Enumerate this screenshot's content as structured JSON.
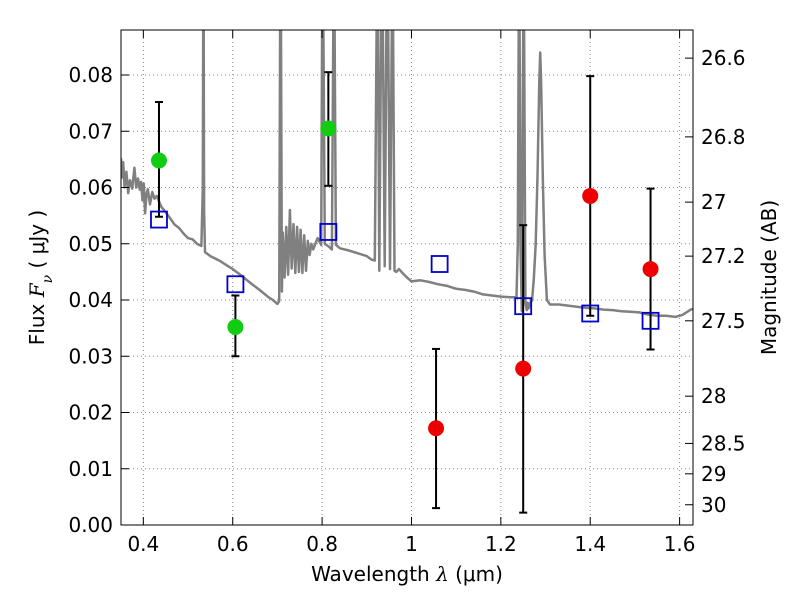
{
  "chart_data": {
    "type": "scatter",
    "title": "",
    "xlabel": {
      "prefix": "Wavelength  ",
      "symbol": "λ",
      "unit": " (μm)"
    },
    "ylabel": {
      "prefix": "Flux  ",
      "symbol": "F",
      "subscript": "ν",
      "unit": "  ( μJy )"
    },
    "y2label": "Magnitude (AB)",
    "xlim": [
      0.35,
      1.63
    ],
    "ylim": [
      0.0,
      0.088
    ],
    "grid": true,
    "x_ticks": [
      0.4,
      0.6,
      0.8,
      1.0,
      1.2,
      1.4,
      1.6
    ],
    "x_tick_labels": [
      "0.4",
      "0.6",
      "0.8",
      "1",
      "1.2",
      "1.4",
      "1.6"
    ],
    "y_ticks": [
      0.0,
      0.01,
      0.02,
      0.03,
      0.04,
      0.05,
      0.06,
      0.07,
      0.08
    ],
    "y_tick_labels": [
      "0.00",
      "0.01",
      "0.02",
      "0.03",
      "0.04",
      "0.05",
      "0.06",
      "0.07",
      "0.08"
    ],
    "y2_ticks": [
      {
        "label": "26.6",
        "flux": 0.083
      },
      {
        "label": "26.8",
        "flux": 0.069
      },
      {
        "label": "27",
        "flux": 0.0574
      },
      {
        "label": "27.2",
        "flux": 0.0478
      },
      {
        "label": "27.5",
        "flux": 0.0363
      },
      {
        "label": "28",
        "flux": 0.0229
      },
      {
        "label": "28.5",
        "flux": 0.0145
      },
      {
        "label": "29",
        "flux": 0.0091
      },
      {
        "label": "30",
        "flux": 0.0036
      }
    ],
    "colors": {
      "green_points": "#11cc11",
      "red_points": "#ee0000",
      "model_squares": "#0000cc",
      "spectrum": "#808080",
      "errorbar": "#000000",
      "grid": "#888888"
    },
    "series": [
      {
        "kind": "green-points",
        "points": [
          {
            "x": 0.435,
            "y": 0.0648,
            "ylo": 0.0548,
            "yhi": 0.0752
          },
          {
            "x": 0.606,
            "y": 0.0352,
            "ylo": 0.03,
            "yhi": 0.0408
          },
          {
            "x": 0.814,
            "y": 0.0705,
            "ylo": 0.0603,
            "yhi": 0.0805
          }
        ]
      },
      {
        "kind": "red-points",
        "points": [
          {
            "x": 1.055,
            "y": 0.0172,
            "ylo": 0.003,
            "yhi": 0.0313
          },
          {
            "x": 1.25,
            "y": 0.0278,
            "ylo": 0.0022,
            "yhi": 0.0533
          },
          {
            "x": 1.4,
            "y": 0.0585,
            "ylo": 0.0372,
            "yhi": 0.0798
          },
          {
            "x": 1.535,
            "y": 0.0455,
            "ylo": 0.0312,
            "yhi": 0.0598
          }
        ]
      },
      {
        "kind": "model-squares",
        "points": [
          {
            "x": 0.435,
            "y": 0.0543
          },
          {
            "x": 0.606,
            "y": 0.0428
          },
          {
            "x": 0.814,
            "y": 0.0521
          },
          {
            "x": 1.063,
            "y": 0.0464
          },
          {
            "x": 1.25,
            "y": 0.0389
          },
          {
            "x": 1.4,
            "y": 0.0376
          },
          {
            "x": 1.535,
            "y": 0.0363
          }
        ]
      }
    ],
    "spectrum": [
      [
        0.35,
        0.0652
      ],
      [
        0.352,
        0.0618
      ],
      [
        0.355,
        0.0645
      ],
      [
        0.358,
        0.06
      ],
      [
        0.362,
        0.0628
      ],
      [
        0.366,
        0.059
      ],
      [
        0.37,
        0.0613
      ],
      [
        0.375,
        0.0598
      ],
      [
        0.38,
        0.0635
      ],
      [
        0.384,
        0.06
      ],
      [
        0.388,
        0.0616
      ],
      [
        0.392,
        0.0596
      ],
      [
        0.395,
        0.061
      ],
      [
        0.398,
        0.0577
      ],
      [
        0.401,
        0.0607
      ],
      [
        0.404,
        0.0554
      ],
      [
        0.407,
        0.0588
      ],
      [
        0.41,
        0.0597
      ],
      [
        0.415,
        0.057
      ],
      [
        0.42,
        0.0592
      ],
      [
        0.425,
        0.058
      ],
      [
        0.43,
        0.0585
      ],
      [
        0.44,
        0.0566
      ],
      [
        0.45,
        0.0556
      ],
      [
        0.46,
        0.0545
      ],
      [
        0.47,
        0.0534
      ],
      [
        0.48,
        0.0528
      ],
      [
        0.49,
        0.0518
      ],
      [
        0.5,
        0.051
      ],
      [
        0.51,
        0.0508
      ],
      [
        0.52,
        0.05
      ],
      [
        0.53,
        0.0496
      ],
      [
        0.533,
        0.06
      ],
      [
        0.534,
        0.088
      ],
      [
        0.535,
        0.088
      ],
      [
        0.536,
        0.056
      ],
      [
        0.538,
        0.0485
      ],
      [
        0.55,
        0.0478
      ],
      [
        0.57,
        0.047
      ],
      [
        0.59,
        0.046
      ],
      [
        0.6,
        0.0455
      ],
      [
        0.62,
        0.0443
      ],
      [
        0.64,
        0.043
      ],
      [
        0.66,
        0.0418
      ],
      [
        0.68,
        0.0405
      ],
      [
        0.69,
        0.04
      ],
      [
        0.7,
        0.0393
      ],
      [
        0.704,
        0.0398
      ],
      [
        0.706,
        0.088
      ],
      [
        0.708,
        0.088
      ],
      [
        0.71,
        0.0415
      ],
      [
        0.712,
        0.052
      ],
      [
        0.716,
        0.044
      ],
      [
        0.72,
        0.053
      ],
      [
        0.724,
        0.0445
      ],
      [
        0.728,
        0.056
      ],
      [
        0.732,
        0.0456
      ],
      [
        0.736,
        0.0535
      ],
      [
        0.74,
        0.0448
      ],
      [
        0.744,
        0.053
      ],
      [
        0.748,
        0.045
      ],
      [
        0.752,
        0.0525
      ],
      [
        0.756,
        0.0448
      ],
      [
        0.76,
        0.0515
      ],
      [
        0.764,
        0.0452
      ],
      [
        0.768,
        0.0505
      ],
      [
        0.772,
        0.048
      ],
      [
        0.776,
        0.05
      ],
      [
        0.78,
        0.049
      ],
      [
        0.79,
        0.051
      ],
      [
        0.798,
        0.0498
      ],
      [
        0.8,
        0.088
      ],
      [
        0.803,
        0.088
      ],
      [
        0.806,
        0.05
      ],
      [
        0.815,
        0.0495
      ],
      [
        0.822,
        0.049
      ],
      [
        0.825,
        0.088
      ],
      [
        0.828,
        0.088
      ],
      [
        0.831,
        0.0498
      ],
      [
        0.84,
        0.0492
      ],
      [
        0.86,
        0.0488
      ],
      [
        0.88,
        0.0483
      ],
      [
        0.9,
        0.0478
      ],
      [
        0.91,
        0.0472
      ],
      [
        0.918,
        0.047
      ],
      [
        0.922,
        0.088
      ],
      [
        0.925,
        0.088
      ],
      [
        0.928,
        0.0452
      ],
      [
        0.932,
        0.088
      ],
      [
        0.936,
        0.088
      ],
      [
        0.94,
        0.046
      ],
      [
        0.944,
        0.088
      ],
      [
        0.948,
        0.088
      ],
      [
        0.952,
        0.0455
      ],
      [
        0.956,
        0.088
      ],
      [
        0.959,
        0.088
      ],
      [
        0.962,
        0.0452
      ],
      [
        0.966,
        0.045
      ],
      [
        0.972,
        0.0455
      ],
      [
        0.98,
        0.0448
      ],
      [
        0.99,
        0.044
      ],
      [
        1.0,
        0.0433
      ],
      [
        1.02,
        0.0435
      ],
      [
        1.04,
        0.0432
      ],
      [
        1.06,
        0.0428
      ],
      [
        1.08,
        0.0425
      ],
      [
        1.1,
        0.042
      ],
      [
        1.12,
        0.0418
      ],
      [
        1.14,
        0.0415
      ],
      [
        1.16,
        0.041
      ],
      [
        1.18,
        0.0408
      ],
      [
        1.2,
        0.0406
      ],
      [
        1.22,
        0.0405
      ],
      [
        1.235,
        0.0405
      ],
      [
        1.238,
        0.05
      ],
      [
        1.24,
        0.088
      ],
      [
        1.242,
        0.088
      ],
      [
        1.244,
        0.0495
      ],
      [
        1.247,
        0.038
      ],
      [
        1.25,
        0.088
      ],
      [
        1.252,
        0.088
      ],
      [
        1.255,
        0.0395
      ],
      [
        1.258,
        0.0382
      ],
      [
        1.26,
        0.0395
      ],
      [
        1.262,
        0.0385
      ],
      [
        1.266,
        0.0395
      ],
      [
        1.27,
        0.04
      ],
      [
        1.274,
        0.044
      ],
      [
        1.278,
        0.05
      ],
      [
        1.282,
        0.062
      ],
      [
        1.286,
        0.079
      ],
      [
        1.288,
        0.084
      ],
      [
        1.29,
        0.079
      ],
      [
        1.294,
        0.061
      ],
      [
        1.298,
        0.048
      ],
      [
        1.303,
        0.04
      ],
      [
        1.31,
        0.0392
      ],
      [
        1.33,
        0.0392
      ],
      [
        1.35,
        0.039
      ],
      [
        1.37,
        0.0388
      ],
      [
        1.39,
        0.0386
      ],
      [
        1.41,
        0.0385
      ],
      [
        1.43,
        0.0383
      ],
      [
        1.45,
        0.0382
      ],
      [
        1.47,
        0.038
      ],
      [
        1.49,
        0.0379
      ],
      [
        1.51,
        0.0378
      ],
      [
        1.53,
        0.0374
      ],
      [
        1.55,
        0.0372
      ],
      [
        1.57,
        0.0372
      ],
      [
        1.59,
        0.037
      ],
      [
        1.605,
        0.0373
      ],
      [
        1.615,
        0.0378
      ],
      [
        1.625,
        0.0383
      ],
      [
        1.63,
        0.0384
      ]
    ]
  }
}
